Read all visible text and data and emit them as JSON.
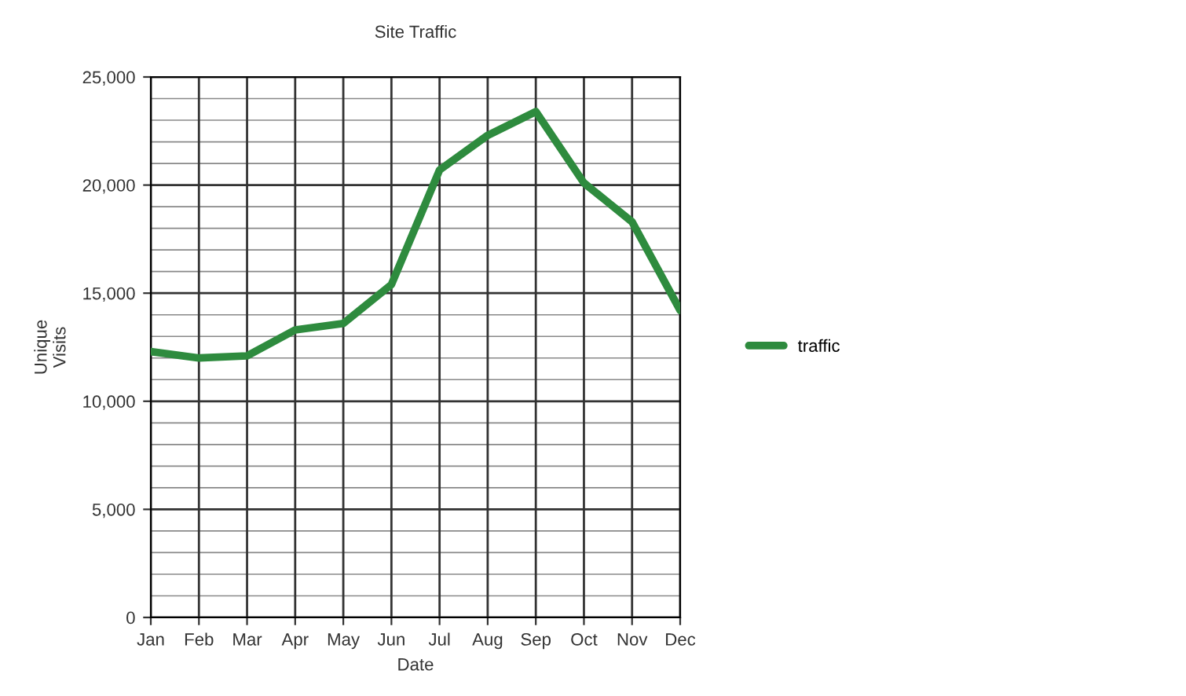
{
  "chart_data": {
    "type": "line",
    "title": "Site Traffic",
    "xlabel": "Date",
    "ylabel": "Unique\nVisits",
    "categories": [
      "Jan",
      "Feb",
      "Mar",
      "Apr",
      "May",
      "Jun",
      "Jul",
      "Aug",
      "Sep",
      "Oct",
      "Nov",
      "Dec"
    ],
    "series": [
      {
        "name": "traffic",
        "color": "#2e8b3e",
        "values": [
          12300,
          12000,
          12100,
          13300,
          13600,
          15400,
          20700,
          22300,
          23400,
          20100,
          18300,
          14200
        ]
      }
    ],
    "ylim": [
      0,
      25000
    ],
    "yticks": [
      {
        "value": 0,
        "label": "0"
      },
      {
        "value": 5000,
        "label": "5,000"
      },
      {
        "value": 10000,
        "label": "10,000"
      },
      {
        "value": 15000,
        "label": "15,000"
      },
      {
        "value": 20000,
        "label": "20,000"
      },
      {
        "value": 25000,
        "label": "25,000"
      }
    ],
    "grid": true,
    "legend": "right",
    "marker": "none",
    "line_style": "solid"
  }
}
